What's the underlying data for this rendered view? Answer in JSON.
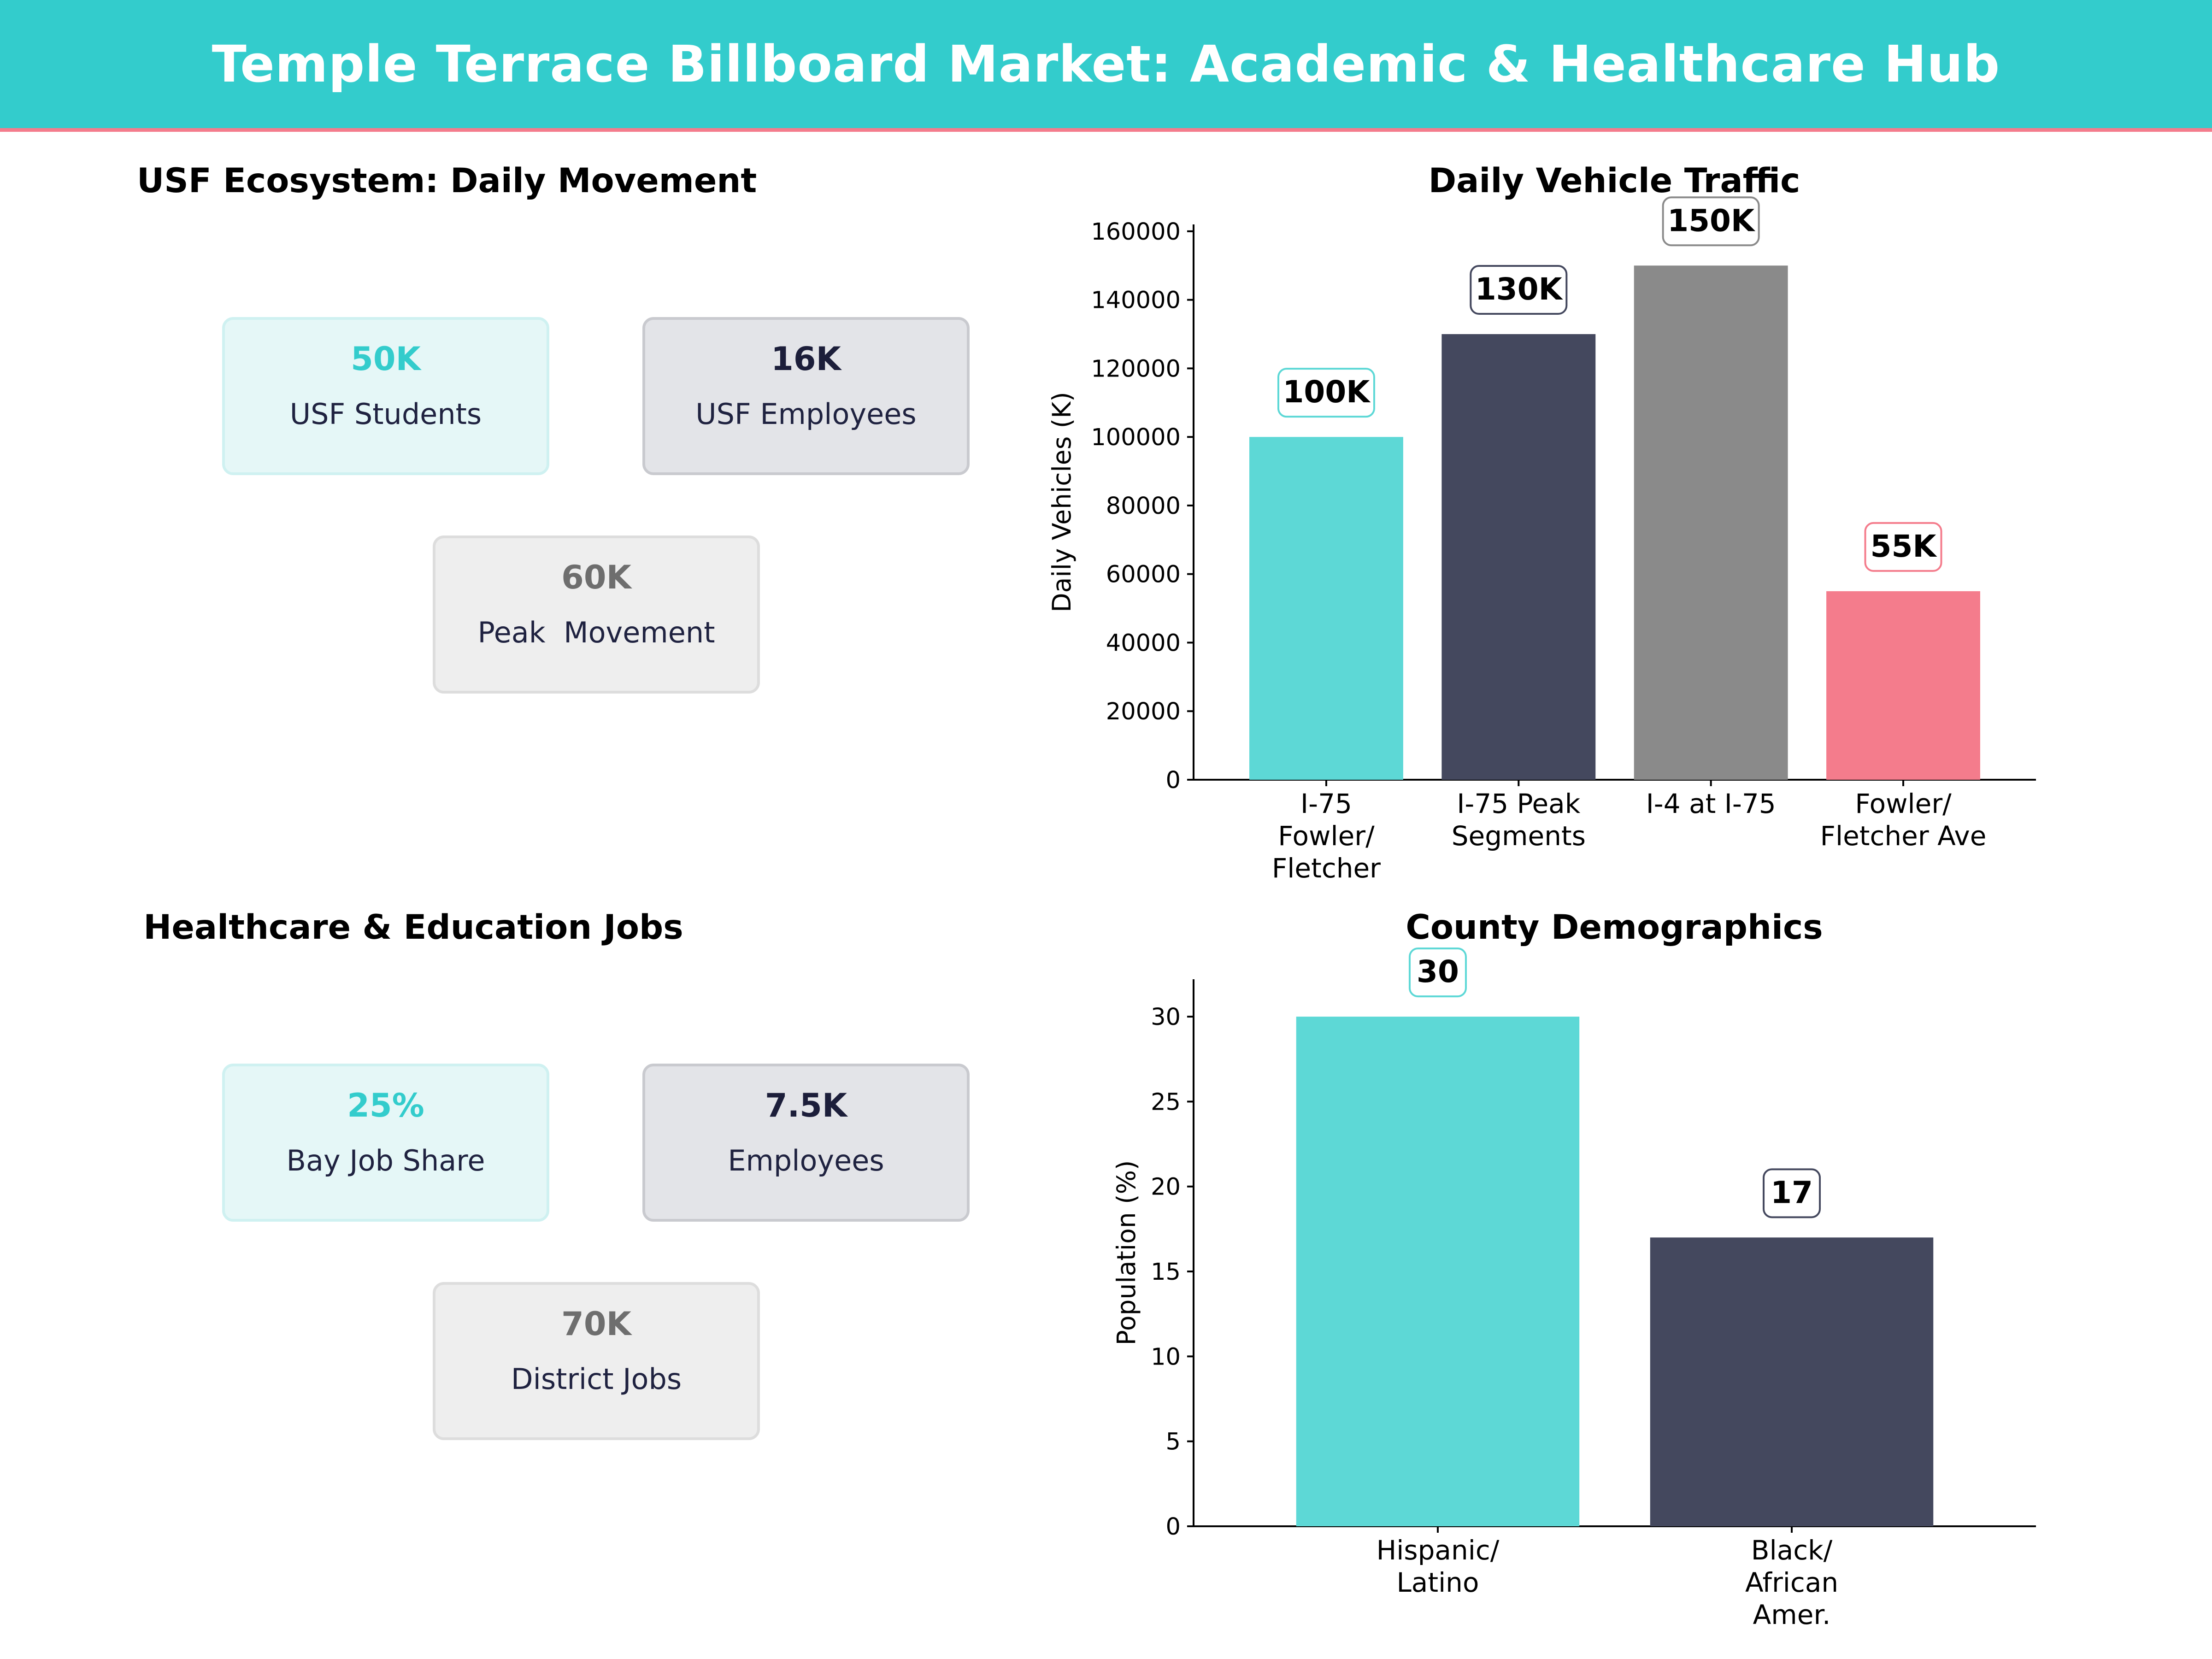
{
  "header": {
    "title": "Temple Terrace Billboard Market: Academic & Healthcare Hub"
  },
  "usf": {
    "title": "USF Ecosystem: Daily Movement",
    "cards": [
      {
        "value": "50K",
        "label": "USF Students"
      },
      {
        "value": "16K",
        "label": "USF Employees"
      },
      {
        "value": "60K",
        "label": "Peak  Movement"
      }
    ]
  },
  "jobs": {
    "title": "Healthcare & Education Jobs",
    "cards": [
      {
        "value": "25%",
        "label": "Bay Job Share"
      },
      {
        "value": "7.5K",
        "label": "Employees"
      },
      {
        "value": "70K",
        "label": "District Jobs"
      }
    ]
  },
  "colors": {
    "teal": "#5DD8D6",
    "navy": "#44485E",
    "grey": "#8A8A8A",
    "pink": "#F47C8C",
    "header": "#33CCCC"
  },
  "chart_data": [
    {
      "type": "bar",
      "title": "Daily Vehicle Traffic",
      "ylabel": "Daily Vehicles (K)",
      "xlabel": "",
      "categories": [
        [
          "I-75",
          "Fowler/",
          "Fletcher"
        ],
        [
          "I-75 Peak",
          "Segments"
        ],
        [
          "I-4 at I-75"
        ],
        [
          "Fowler/",
          "Fletcher Ave"
        ]
      ],
      "values": [
        100000,
        130000,
        150000,
        55000
      ],
      "data_labels": [
        "100K",
        "130K",
        "150K",
        "55K"
      ],
      "colors": [
        "#5DD8D6",
        "#44485E",
        "#8A8A8A",
        "#F47C8C"
      ],
      "label_border_colors": [
        "#5DD8D6",
        "#44485E",
        "#8A8A8A",
        "#F47C8C"
      ],
      "ylim": [
        0,
        162000
      ],
      "yticks": [
        0,
        20000,
        40000,
        60000,
        80000,
        100000,
        120000,
        140000,
        160000
      ],
      "grid": false
    },
    {
      "type": "bar",
      "title": "County Demographics",
      "ylabel": "Population (%)",
      "xlabel": "",
      "categories": [
        [
          "Hispanic/",
          "Latino"
        ],
        [
          "Black/",
          "African",
          "Amer."
        ]
      ],
      "values": [
        30,
        17
      ],
      "data_labels": [
        "30",
        "17"
      ],
      "colors": [
        "#5DD8D6",
        "#44485E"
      ],
      "label_border_colors": [
        "#5DD8D6",
        "#44485E"
      ],
      "ylim": [
        0,
        32.2
      ],
      "yticks": [
        0,
        5,
        10,
        15,
        20,
        25,
        30
      ],
      "grid": false
    }
  ]
}
